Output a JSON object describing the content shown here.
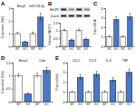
{
  "chart_data": [
    {
      "type": "bar",
      "title": "A",
      "y_label": "Expression (fold)",
      "categories": [
        "WT",
        "KO",
        "WT",
        "KO"
      ],
      "annotations": [
        "Mecp2",
        "miR-134-3p"
      ],
      "values": [
        1,
        0.35,
        1,
        2.3
      ],
      "errors": [
        0.1,
        0.05,
        0.12,
        0.3
      ],
      "colors": [
        "#ffffff",
        "#4a78c2",
        "#ffffff",
        "#4a78c2"
      ],
      "ylim": [
        0,
        3
      ],
      "yticks": [
        0,
        1,
        2,
        3
      ]
    },
    {
      "type": "bar",
      "title": "B",
      "y_label": "Relative MeCP2",
      "blot_labels": [
        "MeCP2",
        "β-actin"
      ],
      "categories": [
        "NC",
        "KO",
        "NC",
        "KO"
      ],
      "values": [
        1,
        0.4,
        1,
        0.45
      ],
      "errors": [
        0.08,
        0.06,
        0.1,
        0.07
      ],
      "colors": [
        "#ffffff",
        "#4a78c2",
        "#ffffff",
        "#4a78c2"
      ],
      "ylim": [
        0,
        1.5
      ],
      "yticks": [
        0,
        0.5,
        1,
        1.5
      ]
    },
    {
      "type": "bar",
      "title": "C",
      "y_label": "Creb mRNA",
      "categories": [
        "NC",
        "KO",
        "NC",
        "KO"
      ],
      "values": [
        1,
        2.8,
        1,
        3.1
      ],
      "errors": [
        0.1,
        0.3,
        0.12,
        0.35
      ],
      "colors": [
        "#ffffff",
        "#4a78c2",
        "#ffffff",
        "#4a78c2"
      ],
      "ylim": [
        0,
        4
      ],
      "yticks": [
        0,
        1,
        2,
        3,
        4
      ]
    },
    {
      "type": "bar",
      "title": "D",
      "y_label": "Expression (fold)",
      "categories": [
        "WT",
        "KO",
        "WT",
        "KO"
      ],
      "annotations": [
        "Mecp2",
        "Creb"
      ],
      "values": [
        1,
        0.3,
        1,
        1.2
      ],
      "errors": [
        0.08,
        0.05,
        0.1,
        0.12
      ],
      "colors": [
        "#ffffff",
        "#4a78c2",
        "#ffffff",
        "#4a78c2"
      ],
      "ylim": [
        0,
        1.5
      ],
      "yticks": [
        0,
        0.5,
        1,
        1.5
      ]
    },
    {
      "type": "bar",
      "title": "E",
      "y_label": "Protein (fold)",
      "categories": [
        "WT",
        "KO",
        "WT",
        "KO",
        "WT",
        "KO",
        "WT",
        "KO"
      ],
      "annotations": [
        "CCL2",
        "CCL3",
        "IL-6",
        "TNF"
      ],
      "values": [
        1,
        2.5,
        1,
        2.8,
        1,
        2.2,
        1,
        3
      ],
      "errors": [
        0.1,
        0.3,
        0.1,
        0.3,
        0.12,
        0.25,
        0.1,
        0.35
      ],
      "colors": [
        "#ffffff",
        "#4a78c2",
        "#ffffff",
        "#4a78c2",
        "#ffffff",
        "#4a78c2",
        "#ffffff",
        "#4a78c2"
      ],
      "ylim": [
        0,
        4
      ],
      "yticks": [
        0,
        1,
        2,
        3,
        4
      ]
    }
  ]
}
